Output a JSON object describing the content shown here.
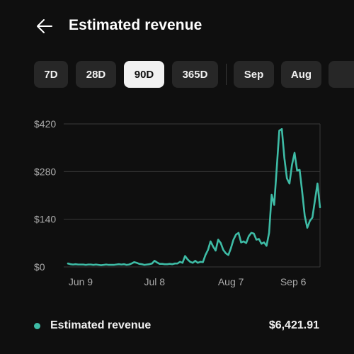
{
  "header": {
    "title": "Estimated revenue",
    "back_icon": "arrow-left-icon"
  },
  "chips": [
    {
      "label": "7D",
      "selected": false
    },
    {
      "label": "28D",
      "selected": false
    },
    {
      "label": "90D",
      "selected": true
    },
    {
      "label": "365D",
      "selected": false
    },
    {
      "label": "Sep",
      "selected": false
    },
    {
      "label": "Aug",
      "selected": false
    }
  ],
  "colors": {
    "accent": "#3ebca6",
    "background": "#0f0f0f",
    "chip_bg": "#272727",
    "chip_selected_bg": "#f1f1f1"
  },
  "legend": {
    "label": "Estimated revenue",
    "value": "$6,421.91"
  },
  "chart_data": {
    "type": "line",
    "title": "",
    "xlabel": "",
    "ylabel": "",
    "ylim": [
      0,
      420
    ],
    "yticks": [
      {
        "value": 0,
        "label": "$0"
      },
      {
        "value": 140,
        "label": "$140"
      },
      {
        "value": 280,
        "label": "$280"
      },
      {
        "value": 420,
        "label": "$420"
      }
    ],
    "xticks": [
      {
        "index": 5,
        "label": "Jun 9"
      },
      {
        "index": 34,
        "label": "Jul 8"
      },
      {
        "index": 64,
        "label": "Aug 7"
      },
      {
        "index": 93,
        "label": "Sep 6"
      }
    ],
    "grid": true,
    "legend_position": "bottom",
    "series": [
      {
        "values": [
          10,
          8,
          7,
          8,
          7,
          7,
          7,
          6,
          7,
          7,
          6,
          7,
          6,
          5,
          6,
          7,
          6,
          6,
          6,
          7,
          8,
          7,
          8,
          6,
          7,
          10,
          14,
          12,
          9,
          8,
          6,
          7,
          8,
          10,
          18,
          13,
          9,
          9,
          8,
          8,
          9,
          8,
          10,
          10,
          15,
          12,
          32,
          22,
          15,
          12,
          18,
          12,
          15,
          14,
          35,
          50,
          75,
          60,
          48,
          80,
          70,
          50,
          40,
          35,
          55,
          80,
          95,
          100,
          72,
          75,
          70,
          90,
          100,
          98,
          80,
          82,
          68,
          72,
          62,
          100,
          212,
          182,
          290,
          400,
          405,
          320,
          260,
          245,
          300,
          335,
          283,
          285,
          220,
          150,
          115,
          135,
          145,
          195,
          245,
          175
        ]
      }
    ]
  }
}
